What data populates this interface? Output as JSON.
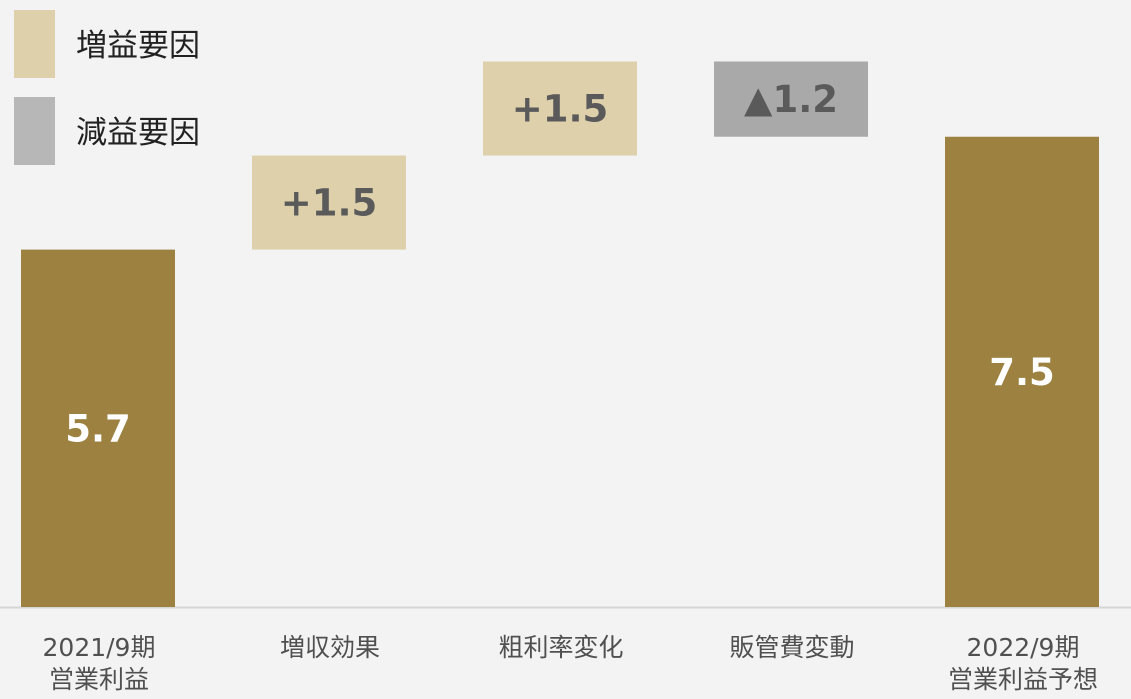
{
  "legend": {
    "increase_label": "増益要因",
    "decrease_label": "減益要因",
    "increase_color": "#ddd0ab",
    "decrease_color": "#b7b7b7"
  },
  "colors": {
    "total": "#9c8140",
    "increase": "#ddd0ab",
    "decrease": "#a9a9a9",
    "total_label": "#ffffff",
    "delta_label": "#5a5a5a"
  },
  "categories": [
    {
      "line1": "2021/9期",
      "line2": "営業利益"
    },
    {
      "line1": "増収効果",
      "line2": ""
    },
    {
      "line1": "粗利率変化",
      "line2": ""
    },
    {
      "line1": "販管費変動",
      "line2": ""
    },
    {
      "line1": "2022/9期",
      "line2": "営業利益予想"
    }
  ],
  "chart_data": {
    "type": "waterfall",
    "categories": [
      "2021/9期 営業利益",
      "増収効果",
      "粗利率変化",
      "販管費変動",
      "2022/9期 営業利益予想"
    ],
    "steps": [
      {
        "kind": "total",
        "value": 5.7,
        "label": "5.7"
      },
      {
        "kind": "increase",
        "value": 1.5,
        "label": "+1.5"
      },
      {
        "kind": "increase",
        "value": 1.5,
        "label": "+1.5"
      },
      {
        "kind": "decrease",
        "value": -1.2,
        "label": "▲1.2"
      },
      {
        "kind": "total",
        "value": 7.5,
        "label": "7.5"
      }
    ],
    "ylim": [
      0,
      9.2
    ]
  }
}
